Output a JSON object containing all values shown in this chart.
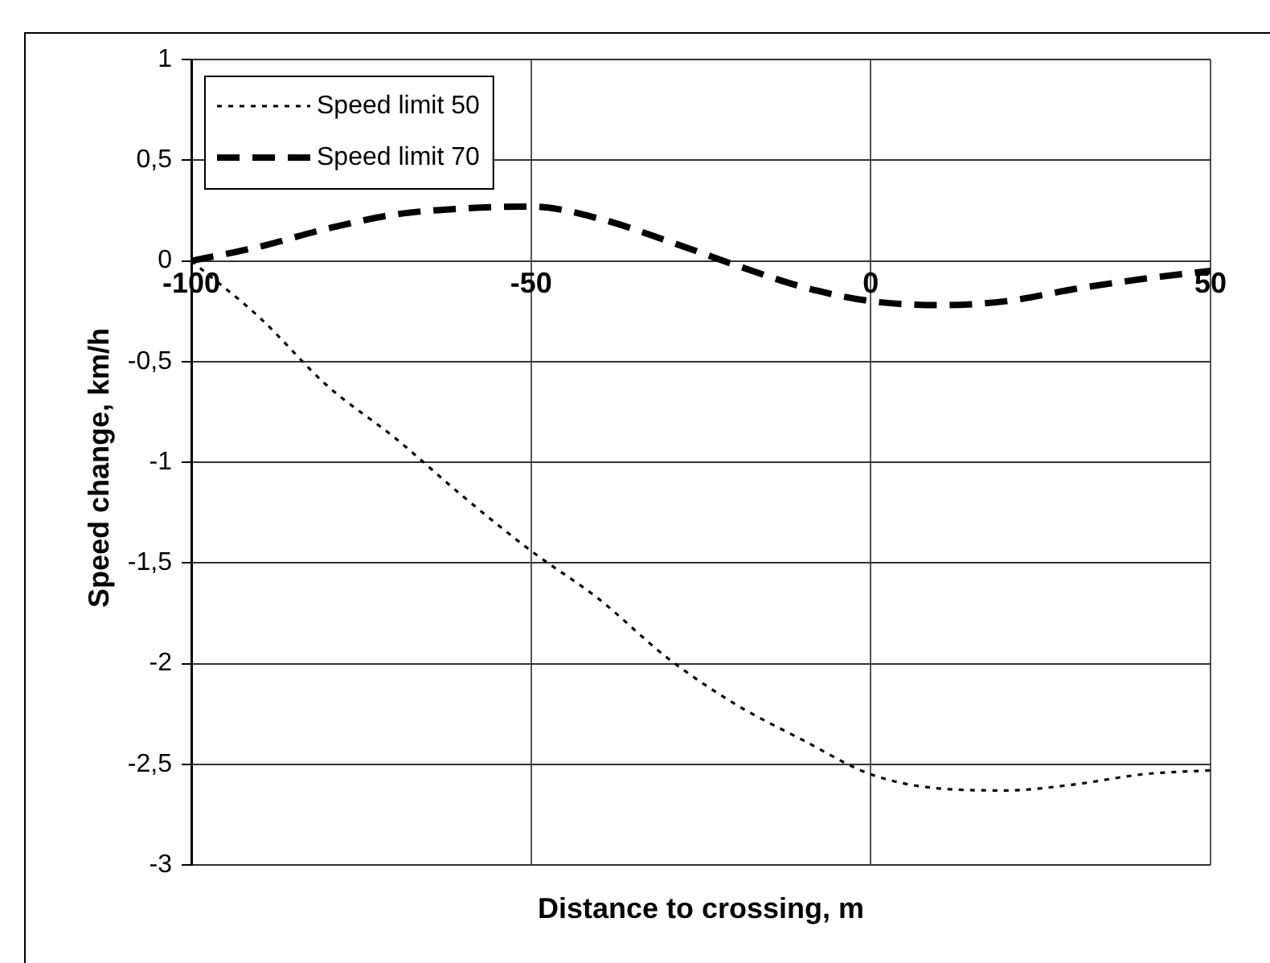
{
  "chart_data": {
    "type": "line",
    "xlabel": "Distance to crossing, m",
    "ylabel": "Speed change, km/h",
    "x": [
      -100,
      -90,
      -80,
      -70,
      -60,
      -50,
      -40,
      -30,
      -20,
      -10,
      0,
      10,
      20,
      30,
      40,
      50
    ],
    "series": [
      {
        "name": "Speed limit 50",
        "color": "#000000",
        "line_style": "dotted",
        "values": [
          0,
          -0.28,
          -0.62,
          -0.88,
          -1.17,
          -1.44,
          -1.68,
          -1.97,
          -2.2,
          -2.38,
          -2.55,
          -2.62,
          -2.63,
          -2.6,
          -2.55,
          -2.53
        ]
      },
      {
        "name": "Speed limit 70",
        "color": "#000000",
        "line_style": "dashed",
        "values": [
          0,
          0.07,
          0.16,
          0.23,
          0.26,
          0.27,
          0.21,
          0.1,
          -0.02,
          -0.13,
          -0.2,
          -0.22,
          -0.2,
          -0.14,
          -0.09,
          -0.05
        ]
      }
    ],
    "xlim": [
      -100,
      50
    ],
    "xticks": [
      -100,
      -50,
      0,
      50
    ],
    "ylim": [
      -3,
      1
    ],
    "yticks": [
      {
        "value": -3,
        "label": "-3"
      },
      {
        "value": -2.5,
        "label": "-2,5"
      },
      {
        "value": -2,
        "label": "-2"
      },
      {
        "value": -1.5,
        "label": "-1,5"
      },
      {
        "value": -1,
        "label": "-1"
      },
      {
        "value": -0.5,
        "label": "-0,5"
      },
      {
        "value": 0,
        "label": "0"
      },
      {
        "value": 0.5,
        "label": "0,5"
      },
      {
        "value": 1,
        "label": "1"
      }
    ],
    "grid": true,
    "legend": "top left",
    "marker": "none"
  }
}
